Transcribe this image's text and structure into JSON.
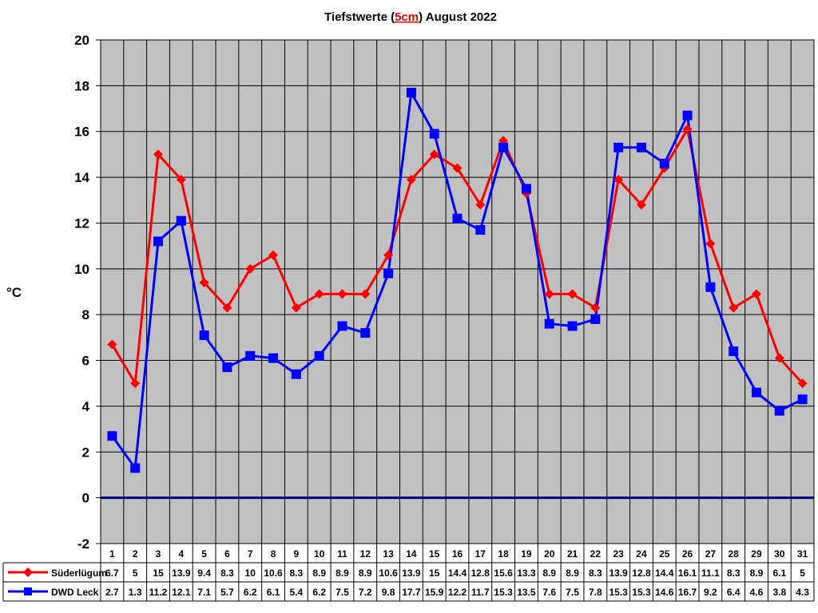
{
  "chart_data": {
    "type": "line",
    "title_prefix": "Tiefstwerte (",
    "title_highlight": "5cm",
    "title_suffix": ") August 2022",
    "ylabel": "°C",
    "xlabel": "",
    "ylim": [
      -2,
      20
    ],
    "yticks": [
      -2,
      0,
      2,
      4,
      6,
      8,
      10,
      12,
      14,
      16,
      18,
      20
    ],
    "grid": true,
    "legend": "table-left",
    "categories": [
      "1",
      "2",
      "3",
      "4",
      "5",
      "6",
      "7",
      "8",
      "9",
      "10",
      "11",
      "12",
      "13",
      "14",
      "15",
      "16",
      "17",
      "18",
      "19",
      "20",
      "21",
      "22",
      "23",
      "24",
      "25",
      "26",
      "27",
      "28",
      "29",
      "30",
      "31"
    ],
    "series": [
      {
        "name": "Süderlügum",
        "color": "#ff0000",
        "marker": "diamond",
        "values": [
          6.7,
          5,
          15,
          13.9,
          9.4,
          8.3,
          10,
          10.6,
          8.3,
          8.9,
          8.9,
          8.9,
          10.6,
          13.9,
          15,
          14.4,
          12.8,
          15.6,
          13.3,
          8.9,
          8.9,
          8.3,
          13.9,
          12.8,
          14.4,
          16.1,
          11.1,
          8.3,
          8.9,
          6.1,
          5
        ]
      },
      {
        "name": "DWD Leck",
        "color": "#0000ff",
        "marker": "square",
        "values": [
          2.7,
          1.3,
          11.2,
          12.1,
          7.1,
          5.7,
          6.2,
          6.1,
          5.4,
          6.2,
          7.5,
          7.2,
          9.8,
          17.7,
          15.9,
          12.2,
          11.7,
          15.3,
          13.5,
          7.6,
          7.5,
          7.8,
          15.3,
          15.3,
          14.6,
          16.7,
          9.2,
          6.4,
          4.6,
          3.8,
          4.3
        ]
      }
    ],
    "colors": {
      "plot_background": "#c0c0c0",
      "zero_line": "#000080",
      "title_highlight": "#ff0000"
    }
  }
}
